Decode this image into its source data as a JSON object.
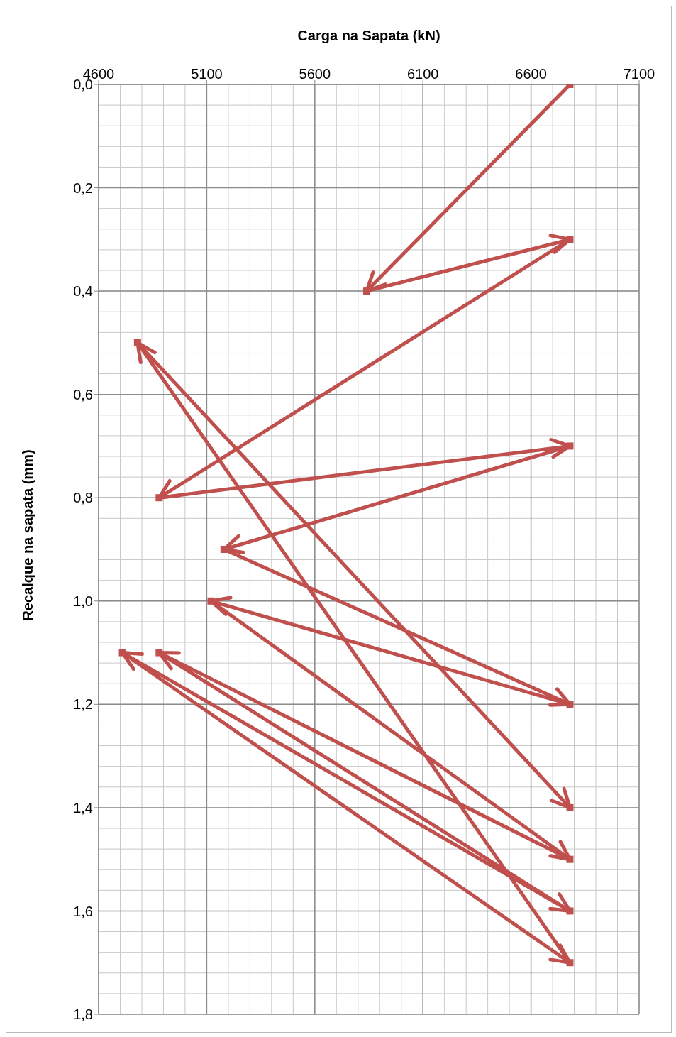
{
  "chart_data": {
    "type": "line",
    "xlabel": "Carga na Sapata (kN)",
    "ylabel": "Recalque na sapata (mm)",
    "x": [
      6780,
      5840,
      6780,
      4880,
      6780,
      5180,
      6780,
      5120,
      6780,
      4880,
      6780,
      4710,
      6780,
      4780,
      6780
    ],
    "series": [
      {
        "color": "#c0504d",
        "values": [
          0,
          0.4,
          0.3,
          0.8,
          0.7,
          0.9,
          1.2,
          1.0,
          1.5,
          1.1,
          1.6,
          1.1,
          1.7,
          0.5,
          1.4
        ]
      }
    ],
    "xlim": [
      4600,
      7100
    ],
    "xticks": [
      4600,
      5100,
      5600,
      6100,
      6600,
      7100
    ],
    "ylim": [
      1.8,
      0
    ],
    "yticks": [
      {
        "value": 0,
        "label": "0,0"
      },
      {
        "value": 0.2,
        "label": "0,2"
      },
      {
        "value": 0.4,
        "label": "0,4"
      },
      {
        "value": 0.6,
        "label": "0,6"
      },
      {
        "value": 0.8,
        "label": "0,8"
      },
      {
        "value": 1.0,
        "label": "1,0"
      },
      {
        "value": 1.2,
        "label": "1,2"
      },
      {
        "value": 1.4,
        "label": "1,4"
      },
      {
        "value": 1.6,
        "label": "1,6"
      },
      {
        "value": 1.8,
        "label": "1,8"
      }
    ],
    "grid": true,
    "marker": "square",
    "line_style": "solid"
  }
}
